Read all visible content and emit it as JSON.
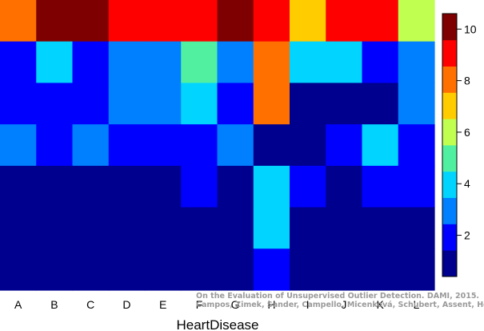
{
  "chart_data": {
    "type": "heatmap",
    "xlabel": "HeartDisease",
    "categories": [
      "A",
      "B",
      "C",
      "D",
      "E",
      "F",
      "G",
      "H",
      "I",
      "J",
      "K",
      "L"
    ],
    "rows_top_to_bottom": [
      [
        8,
        10.5,
        10.5,
        9,
        9,
        9,
        10.5,
        9,
        7,
        9,
        9,
        6
      ],
      [
        2,
        4,
        2,
        3,
        3,
        5,
        3,
        8,
        4,
        4,
        2,
        3
      ],
      [
        2,
        2,
        2,
        3,
        3,
        4,
        2,
        8,
        1,
        1,
        1,
        3
      ],
      [
        3,
        2,
        3,
        2,
        2,
        2,
        3,
        1,
        1,
        2,
        4,
        2
      ],
      [
        1,
        1,
        1,
        1,
        1,
        2,
        1,
        4,
        2,
        1,
        2,
        2
      ],
      [
        1,
        1,
        1,
        1,
        1,
        1,
        1,
        4,
        1,
        1,
        1,
        1
      ],
      [
        1,
        1,
        1,
        1,
        1,
        1,
        1,
        2,
        1,
        1,
        1,
        1
      ]
    ],
    "colorbar": {
      "ticks": [
        2,
        4,
        6,
        8,
        10
      ],
      "colors_bottom_to_top": [
        "#00008f",
        "#0000ff",
        "#0080ff",
        "#00d4ff",
        "#50f0a0",
        "#c0ff50",
        "#ffcc00",
        "#ff7000",
        "#ff0000",
        "#7f0000"
      ]
    },
    "legend": "right"
  },
  "caption": {
    "line1": "On the Evaluation of Unsupervised Outlier Detection. DAMI, 2015.",
    "line2": "Campos, Zimek, Sander, Campello, Micenková, Schubert, Assent, Houle"
  }
}
